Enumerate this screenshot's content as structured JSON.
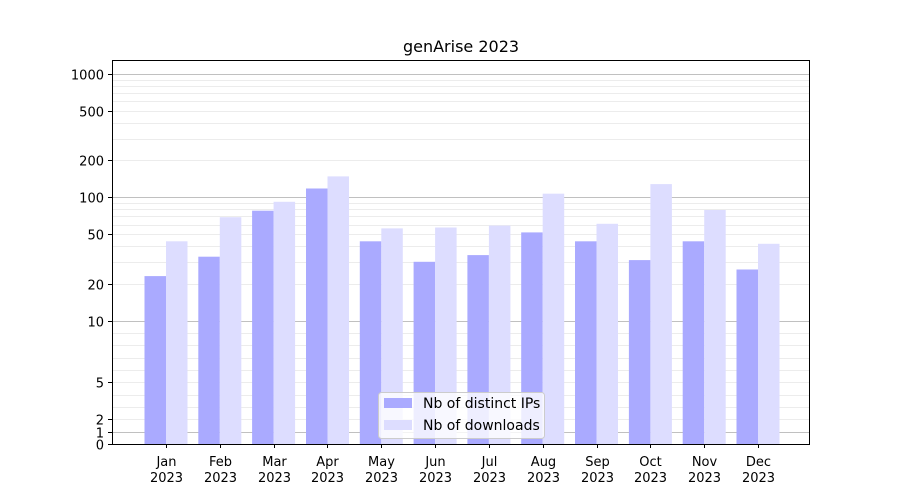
{
  "chart_data": {
    "type": "bar",
    "title": "genArise 2023",
    "xlabel": "",
    "ylabel": "",
    "y_scale": "symlog",
    "ylim": [
      0,
      1300
    ],
    "yticks": [
      {
        "value": 0,
        "label": "0"
      },
      {
        "value": 1,
        "label": "1"
      },
      {
        "value": 2,
        "label": "2"
      },
      {
        "value": 5,
        "label": "5"
      },
      {
        "value": 10,
        "label": "10"
      },
      {
        "value": 20,
        "label": "20"
      },
      {
        "value": 50,
        "label": "50"
      },
      {
        "value": 100,
        "label": "100"
      },
      {
        "value": 200,
        "label": "200"
      },
      {
        "value": 500,
        "label": "500"
      },
      {
        "value": 1000,
        "label": "1000"
      }
    ],
    "categories": [
      {
        "month": "Jan",
        "year": "2023"
      },
      {
        "month": "Feb",
        "year": "2023"
      },
      {
        "month": "Mar",
        "year": "2023"
      },
      {
        "month": "Apr",
        "year": "2023"
      },
      {
        "month": "May",
        "year": "2023"
      },
      {
        "month": "Jun",
        "year": "2023"
      },
      {
        "month": "Jul",
        "year": "2023"
      },
      {
        "month": "Aug",
        "year": "2023"
      },
      {
        "month": "Sep",
        "year": "2023"
      },
      {
        "month": "Oct",
        "year": "2023"
      },
      {
        "month": "Nov",
        "year": "2023"
      },
      {
        "month": "Dec",
        "year": "2023"
      }
    ],
    "series": [
      {
        "name": "Nb of distinct IPs",
        "color": "#aaaaff",
        "values": [
          23,
          33,
          78,
          118,
          44,
          30,
          34,
          52,
          44,
          31,
          44,
          26
        ]
      },
      {
        "name": "Nb of downloads",
        "color": "#ddddff",
        "values": [
          44,
          69,
          92,
          148,
          56,
          57,
          59,
          107,
          61,
          128,
          79,
          42
        ]
      }
    ],
    "grid": true,
    "legend_position": "lower center"
  }
}
